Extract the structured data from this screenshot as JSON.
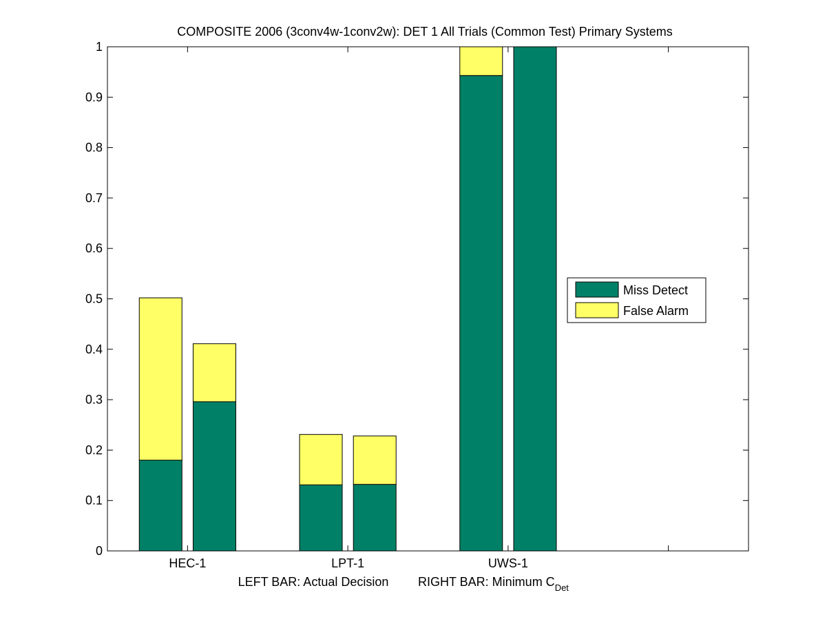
{
  "chart_data": {
    "type": "bar",
    "stacked": true,
    "title": "COMPOSITE 2006 (3conv4w-1conv2w): DET 1 All Trials (Common Test) Primary Systems",
    "xlabel_left": "LEFT BAR: Actual Decision",
    "xlabel_right_prefix": "RIGHT BAR: Minimum C",
    "xlabel_right_sub": "Det",
    "ylim": [
      0,
      1
    ],
    "yticks": [
      "0",
      "0.1",
      "0.2",
      "0.3",
      "0.4",
      "0.5",
      "0.6",
      "0.7",
      "0.8",
      "0.9",
      "1"
    ],
    "xtick_labels": [
      "HEC-1",
      "LPT-1",
      "UWS-1"
    ],
    "legend_position": "right",
    "colors": {
      "miss": "#008066",
      "false_alarm": "#ffff66"
    },
    "series": [
      {
        "name": "Miss Detect",
        "left": [
          0.18,
          0.131,
          0.943
        ],
        "right": [
          0.296,
          0.132,
          1.0
        ]
      },
      {
        "name": "False Alarm",
        "left": [
          0.322,
          0.1,
          0.057
        ],
        "right": [
          0.115,
          0.096,
          0.0
        ]
      }
    ]
  }
}
